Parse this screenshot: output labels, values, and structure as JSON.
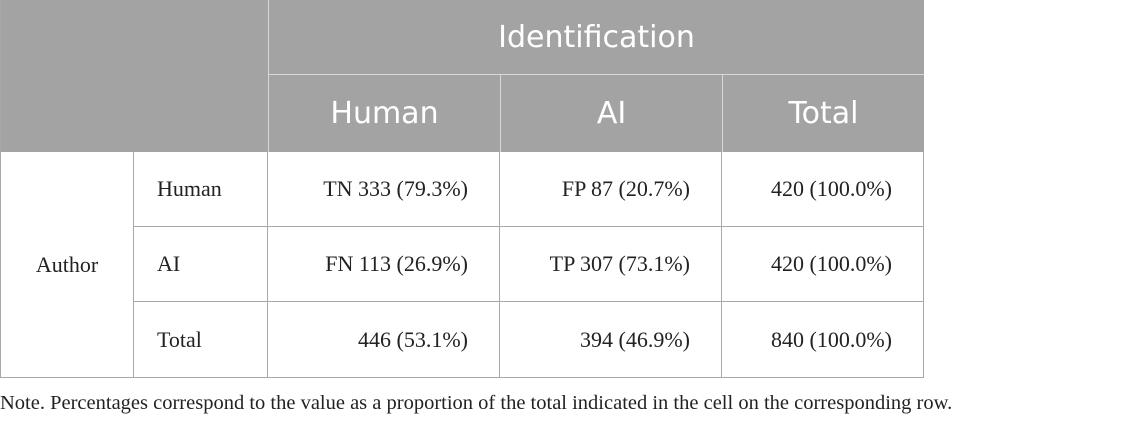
{
  "table": {
    "group_header": "Identification",
    "columns": [
      "Human",
      "AI",
      "Total"
    ],
    "row_group": "Author",
    "rows": [
      {
        "label": "Human",
        "cells": [
          "TN 333 (79.3%)",
          "FP 87 (20.7%)",
          "420 (100.0%)"
        ]
      },
      {
        "label": "AI",
        "cells": [
          "FN 113 (26.9%)",
          "TP 307 (73.1%)",
          "420 (100.0%)"
        ]
      },
      {
        "label": "Total",
        "cells": [
          "446 (53.1%)",
          "394 (46.9%)",
          "840 (100.0%)"
        ]
      }
    ]
  },
  "note": "Note. Percentages correspond to the value as a proportion of the total indicated in the cell on the corresponding row."
}
